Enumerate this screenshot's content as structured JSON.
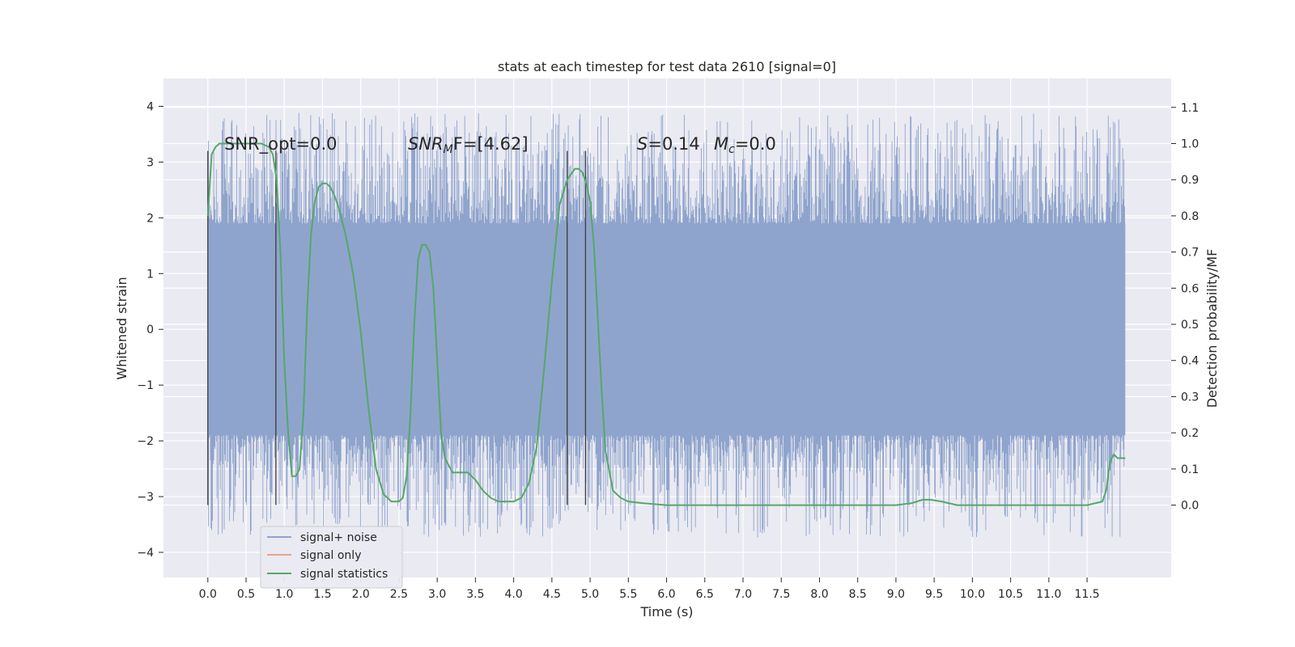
{
  "chart_data": {
    "type": "line",
    "title": "stats at each timestep for test data 2610 [signal=0]",
    "xlabel": "Time (s)",
    "ylabel": "Whitened strain",
    "y2label": "Detection probability/MF",
    "xlim": [
      -0.58,
      12.6
    ],
    "ylim": [
      -4.45,
      4.5
    ],
    "y2lim": [
      -0.2,
      1.18
    ],
    "x_ticks": [
      "0.0",
      "0.5",
      "1.0",
      "1.5",
      "2.0",
      "2.5",
      "3.0",
      "3.5",
      "4.0",
      "4.5",
      "5.0",
      "5.5",
      "6.0",
      "6.5",
      "7.0",
      "7.5",
      "8.0",
      "8.5",
      "9.0",
      "9.5",
      "10.0",
      "10.5",
      "11.0",
      "11.5"
    ],
    "y_ticks": [
      "4",
      "3",
      "2",
      "1",
      "0",
      "−1",
      "−2",
      "−3",
      "−4"
    ],
    "y2_ticks": [
      "1.1",
      "1.0",
      "0.9",
      "0.8",
      "0.7",
      "0.6",
      "0.5",
      "0.4",
      "0.3",
      "0.2",
      "0.1",
      "0.0"
    ],
    "grid": true,
    "legend_position": "lower-left",
    "annotations": {
      "snr_opt": "SNR_opt=0.0",
      "snr_mf_main": "SNR",
      "snr_mf_sub": "M",
      "snr_mf_rest": "F=[4.62]",
      "s_symbol": "S",
      "s_value": "=0.14",
      "mc_symbol": "M",
      "mc_sub": "c",
      "mc_value": "=0.0"
    },
    "vertical_lines": [
      {
        "x": 0.0,
        "ymin": -3.15,
        "ymax": 3.2
      },
      {
        "x": 0.89,
        "ymin": -3.15,
        "ymax": 3.2
      },
      {
        "x": 4.7,
        "ymin": -3.15,
        "ymax": 3.2
      },
      {
        "x": 4.94,
        "ymin": -3.15,
        "ymax": 3.2
      }
    ],
    "noise_envelope": {
      "x_start": 0.0,
      "x_end": 12.0,
      "dense_amplitude": 1.9,
      "spike_max": 4.1,
      "spike_min": -4.05
    },
    "series": [
      {
        "name": "signal+ noise",
        "color": "#8fa4cc",
        "axis": "left"
      },
      {
        "name": "signal only",
        "color": "#e8a485",
        "axis": "left"
      },
      {
        "name": "signal statistics",
        "color": "#55a868",
        "axis": "right",
        "x": [
          0.0,
          0.05,
          0.1,
          0.15,
          0.2,
          0.3,
          0.5,
          0.7,
          0.8,
          0.85,
          0.9,
          0.95,
          1.0,
          1.05,
          1.1,
          1.15,
          1.2,
          1.25,
          1.3,
          1.35,
          1.4,
          1.45,
          1.5,
          1.55,
          1.6,
          1.65,
          1.7,
          1.8,
          1.9,
          2.0,
          2.1,
          2.2,
          2.3,
          2.4,
          2.5,
          2.55,
          2.6,
          2.65,
          2.7,
          2.75,
          2.8,
          2.85,
          2.9,
          2.95,
          3.0,
          3.05,
          3.1,
          3.2,
          3.3,
          3.4,
          3.5,
          3.6,
          3.7,
          3.8,
          3.9,
          4.0,
          4.1,
          4.2,
          4.3,
          4.4,
          4.5,
          4.6,
          4.7,
          4.8,
          4.85,
          4.9,
          4.95,
          5.0,
          5.05,
          5.1,
          5.15,
          5.2,
          5.3,
          5.4,
          5.5,
          5.7,
          6.0,
          7.0,
          8.0,
          9.0,
          9.2,
          9.35,
          9.45,
          9.6,
          9.8,
          10.0,
          10.5,
          11.0,
          11.5,
          11.7,
          11.75,
          11.8,
          11.85,
          11.9,
          12.0
        ],
        "y": [
          0.8,
          0.97,
          0.99,
          1.0,
          1.0,
          1.0,
          1.0,
          1.0,
          0.99,
          0.97,
          0.9,
          0.7,
          0.4,
          0.2,
          0.08,
          0.08,
          0.1,
          0.25,
          0.55,
          0.75,
          0.84,
          0.88,
          0.89,
          0.89,
          0.88,
          0.86,
          0.83,
          0.75,
          0.64,
          0.48,
          0.27,
          0.1,
          0.03,
          0.01,
          0.01,
          0.02,
          0.08,
          0.25,
          0.5,
          0.68,
          0.72,
          0.72,
          0.7,
          0.6,
          0.4,
          0.2,
          0.13,
          0.09,
          0.09,
          0.09,
          0.07,
          0.04,
          0.02,
          0.01,
          0.01,
          0.01,
          0.02,
          0.06,
          0.16,
          0.38,
          0.62,
          0.83,
          0.9,
          0.93,
          0.93,
          0.92,
          0.89,
          0.84,
          0.72,
          0.52,
          0.32,
          0.15,
          0.04,
          0.02,
          0.01,
          0.005,
          0.0,
          0.0,
          0.0,
          0.0,
          0.005,
          0.015,
          0.015,
          0.01,
          0.0,
          0.0,
          0.0,
          0.0,
          0.0,
          0.01,
          0.04,
          0.12,
          0.14,
          0.13,
          0.13
        ]
      }
    ]
  }
}
